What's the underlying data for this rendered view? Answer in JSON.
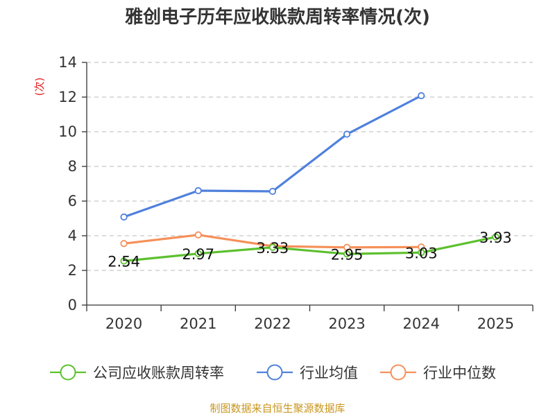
{
  "chart_data": {
    "type": "line",
    "title": "雅创电子历年应收账款周转率情况(次)",
    "ylabel": "(次)",
    "xlabel": "",
    "categories": [
      "2020",
      "2021",
      "2022",
      "2023",
      "2024",
      "2025"
    ],
    "ylim": [
      0,
      14
    ],
    "yticks": [
      0,
      2,
      4,
      6,
      8,
      10,
      12,
      14
    ],
    "grid": true,
    "legend_position": "bottom",
    "series": [
      {
        "name": "行业中位数",
        "color": "#f5905a",
        "values": [
          3.55,
          4.05,
          3.4,
          3.33,
          3.35,
          null
        ],
        "labels": false
      },
      {
        "name": "行业均值",
        "color": "#4f80dc",
        "values": [
          5.08,
          6.6,
          6.56,
          9.86,
          12.08,
          null
        ],
        "labels": false
      },
      {
        "name": "公司应收账款周转率",
        "color": "#5cc02e",
        "values": [
          2.54,
          2.97,
          3.33,
          2.95,
          3.03,
          3.93
        ],
        "labels": true
      }
    ],
    "data_labels": [
      "2.54",
      "2.97",
      "3.33",
      "2.95",
      "3.03",
      "3.93"
    ],
    "legend_order": [
      "公司应收账款周转率",
      "行业均值",
      "行业中位数"
    ],
    "source": "制图数据来自恒生聚源数据库"
  }
}
